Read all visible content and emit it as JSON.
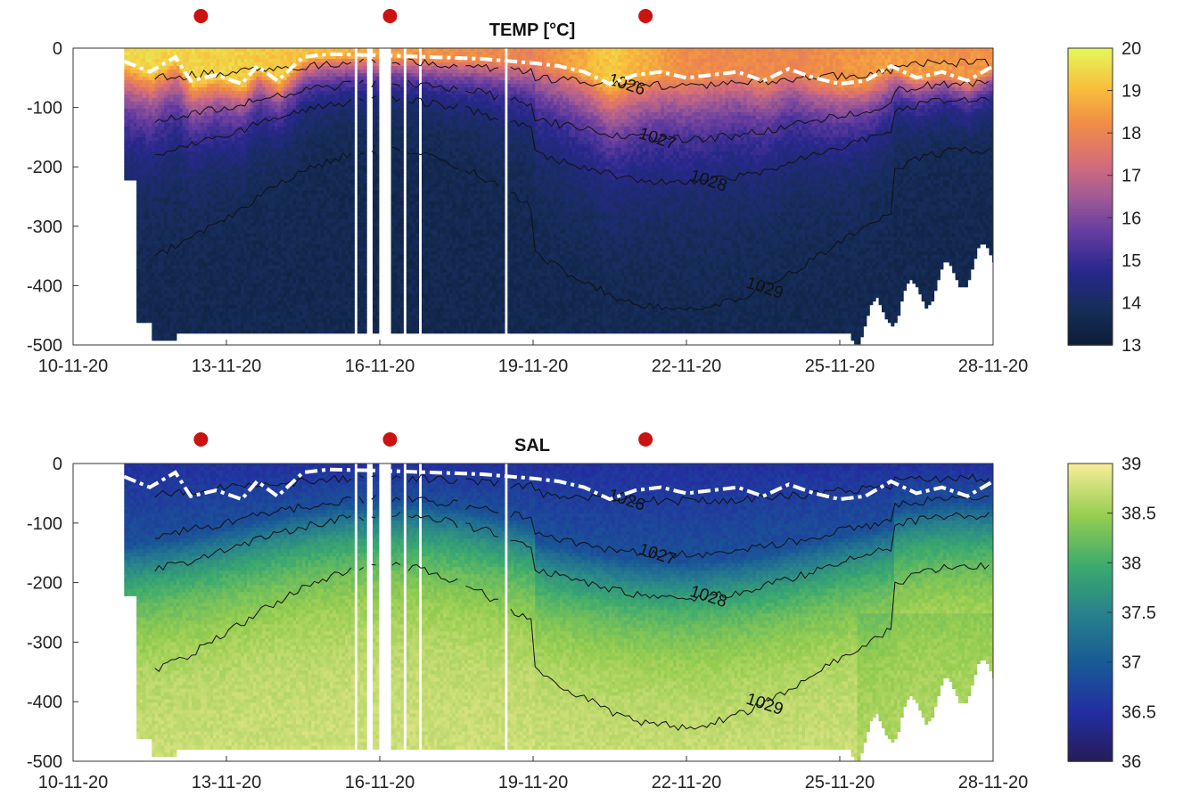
{
  "chart_data": [
    {
      "type": "heatmap",
      "title": "TEMP [°C]",
      "variable": "TEMP",
      "x_ticks": [
        "10-11-20",
        "13-11-20",
        "16-11-20",
        "19-11-20",
        "22-11-20",
        "25-11-20",
        "28-11-20"
      ],
      "x_range_days": [
        10,
        28
      ],
      "y_ticks": [
        "0",
        "-100",
        "-200",
        "-300",
        "-400",
        "-500"
      ],
      "y_range": [
        -500,
        0
      ],
      "colorbar": {
        "min": 13,
        "max": 20,
        "ticks": [
          "13",
          "14",
          "15",
          "16",
          "17",
          "18",
          "19",
          "20"
        ],
        "colormap": "thermal"
      },
      "contour_labels": [
        "1026",
        "1027",
        "1028",
        "1029"
      ],
      "markers": [
        {
          "day": 12.5,
          "color": "#cc1111"
        },
        {
          "day": 16.2,
          "color": "#cc1111"
        },
        {
          "day": 21.2,
          "color": "#cc1111"
        }
      ],
      "mixed_layer_depth": [
        [
          11.0,
          -22
        ],
        [
          11.5,
          -40
        ],
        [
          12.0,
          -15
        ],
        [
          12.3,
          -55
        ],
        [
          12.8,
          -45
        ],
        [
          13.3,
          -60
        ],
        [
          13.6,
          -30
        ],
        [
          14.0,
          -55
        ],
        [
          14.5,
          -15
        ],
        [
          15.0,
          -10
        ],
        [
          16.0,
          -12
        ],
        [
          17.0,
          -15
        ],
        [
          18.0,
          -18
        ],
        [
          19.0,
          -25
        ],
        [
          19.5,
          -30
        ],
        [
          20.0,
          -40
        ],
        [
          20.5,
          -60
        ],
        [
          21.0,
          -45
        ],
        [
          21.5,
          -40
        ],
        [
          22.0,
          -50
        ],
        [
          22.5,
          -45
        ],
        [
          23.0,
          -40
        ],
        [
          23.5,
          -55
        ],
        [
          24.0,
          -35
        ],
        [
          24.5,
          -50
        ],
        [
          25.0,
          -60
        ],
        [
          25.5,
          -55
        ],
        [
          26.0,
          -30
        ],
        [
          26.5,
          -50
        ],
        [
          27.0,
          -40
        ],
        [
          27.5,
          -55
        ],
        [
          28.0,
          -30
        ]
      ],
      "surface_temp_by_day": [
        [
          11.0,
          19.5
        ],
        [
          13.0,
          19.4
        ],
        [
          15.0,
          19.0
        ],
        [
          17.0,
          18.4
        ],
        [
          19.0,
          18.0
        ],
        [
          20.5,
          19.3
        ],
        [
          22.0,
          18.2
        ],
        [
          24.0,
          18.1
        ],
        [
          26.0,
          18.6
        ],
        [
          28.0,
          18.3
        ]
      ],
      "deep_temp": 13.6
    },
    {
      "type": "heatmap",
      "title": "SAL",
      "variable": "SAL",
      "x_ticks": [
        "10-11-20",
        "13-11-20",
        "16-11-20",
        "19-11-20",
        "22-11-20",
        "25-11-20",
        "28-11-20"
      ],
      "x_range_days": [
        10,
        28
      ],
      "y_ticks": [
        "0",
        "-100",
        "-200",
        "-300",
        "-400",
        "-500"
      ],
      "y_range": [
        -500,
        0
      ],
      "colorbar": {
        "min": 36,
        "max": 39,
        "ticks": [
          "36",
          "36.5",
          "37",
          "37.5",
          "38",
          "38.5",
          "39"
        ],
        "colormap": "haline"
      },
      "contour_labels": [
        "1026",
        "1027",
        "1028",
        "1029"
      ],
      "markers": [
        {
          "day": 12.5,
          "color": "#cc1111"
        },
        {
          "day": 16.2,
          "color": "#cc1111"
        },
        {
          "day": 21.2,
          "color": "#cc1111"
        }
      ],
      "surface_sal": 36.4,
      "deep_sal": 38.8
    }
  ]
}
